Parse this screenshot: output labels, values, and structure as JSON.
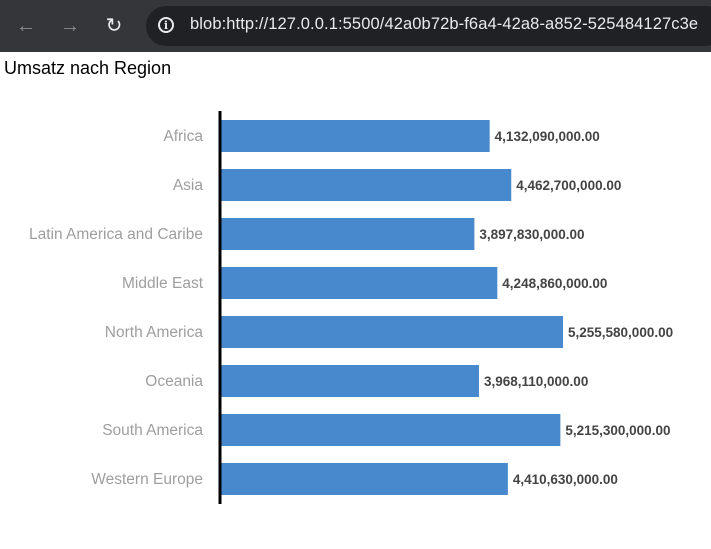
{
  "browser": {
    "back_icon": "arrow-left-icon",
    "forward_icon": "arrow-right-icon",
    "reload_icon": "reload-icon",
    "info_icon": "info-icon",
    "url": "blob:http://127.0.0.1:5500/42a0b72b-f6a4-42a8-a852-525484127c3e"
  },
  "page": {
    "title": "Umsatz nach Region"
  },
  "chart_data": {
    "type": "bar",
    "orientation": "horizontal",
    "title": "Umsatz nach Region",
    "xlabel": "",
    "ylabel": "",
    "categories": [
      "Africa",
      "Asia",
      "Latin America and Caribe",
      "Middle East",
      "North America",
      "Oceania",
      "South America",
      "Western Europe"
    ],
    "values": [
      4132090000,
      4462700000,
      3897830000,
      4248860000,
      5255580000,
      3968110000,
      5215300000,
      4410630000
    ],
    "value_labels": [
      "4,132,090,000.00",
      "4,462,700,000.00",
      "3,897,830,000.00",
      "4,248,860,000.00",
      "5,255,580,000.00",
      "3,968,110,000.00",
      "5,215,300,000.00",
      "4,410,630,000.00"
    ],
    "xlim": [
      0,
      5255580000
    ],
    "bar_color": "#4789cc",
    "axis_color": "#000000",
    "category_label_color": "#9e9e9e",
    "value_label_color": "#444444",
    "grid": false,
    "legend": false
  }
}
